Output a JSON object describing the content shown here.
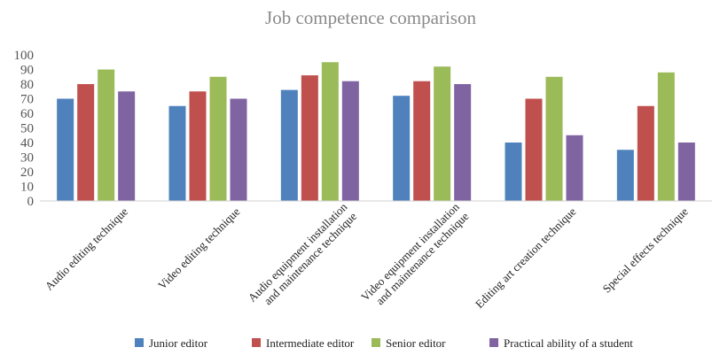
{
  "chart_data": {
    "type": "bar",
    "title": "Job competence comparison",
    "xlabel": "",
    "ylabel": "",
    "ylim": [
      0,
      100
    ],
    "yticks": [
      0,
      10,
      20,
      30,
      40,
      50,
      60,
      70,
      80,
      90,
      100
    ],
    "grid": false,
    "legend_position": "bottom",
    "categories": [
      [
        "Audio editing technique"
      ],
      [
        "Video editing technique"
      ],
      [
        "Audio equipment installation",
        "and maintenance technique"
      ],
      [
        "Video equipment installation",
        "and maintenance technique"
      ],
      [
        "Editing art creation technique"
      ],
      [
        "Special effects technique"
      ]
    ],
    "series": [
      {
        "name": "Junior editor",
        "color": "#4f81bd",
        "values": [
          70,
          65,
          76,
          72,
          40,
          35
        ]
      },
      {
        "name": "Intermediate editor",
        "color": "#c0504d",
        "values": [
          80,
          75,
          86,
          82,
          70,
          65
        ]
      },
      {
        "name": "Senior editor",
        "color": "#9bbb59",
        "values": [
          90,
          85,
          95,
          92,
          85,
          88
        ]
      },
      {
        "name": "Practical ability of a student",
        "color": "#8064a2",
        "values": [
          75,
          70,
          82,
          80,
          45,
          40
        ]
      }
    ]
  }
}
